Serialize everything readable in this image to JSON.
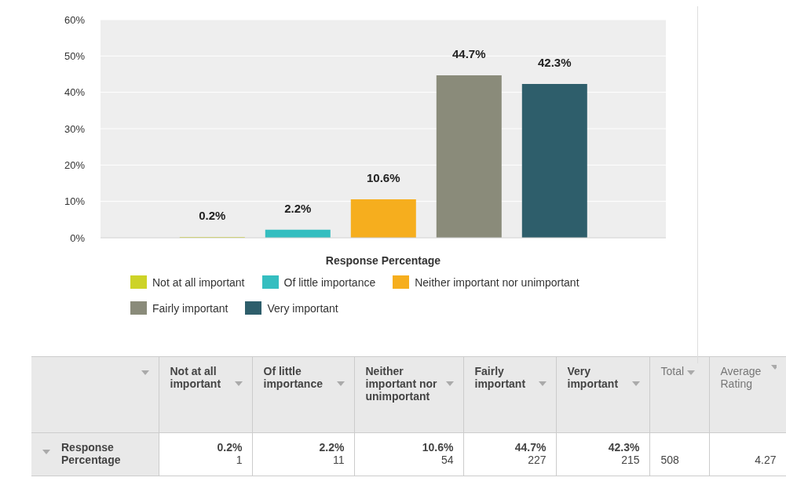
{
  "chart_data": {
    "type": "bar",
    "categories": [
      "Response Percentage"
    ],
    "series": [
      {
        "name": "Not at all important",
        "color": "#cdd327",
        "values": [
          0.2
        ],
        "value_labels": [
          "0.2%"
        ]
      },
      {
        "name": "Of little importance",
        "color": "#35bec0",
        "values": [
          2.2
        ],
        "value_labels": [
          "2.2%"
        ]
      },
      {
        "name": "Neither important nor unimportant",
        "color": "#f6ae1e",
        "values": [
          10.6
        ],
        "value_labels": [
          "10.6%"
        ]
      },
      {
        "name": "Fairly important",
        "color": "#8a8b7a",
        "values": [
          44.7
        ],
        "value_labels": [
          "44.7%"
        ]
      },
      {
        "name": "Very important",
        "color": "#2e5e6b",
        "values": [
          42.3
        ],
        "value_labels": [
          "42.3%"
        ]
      }
    ],
    "ylim": [
      0,
      60
    ],
    "yticks": [
      {
        "value": 0,
        "label": "0%"
      },
      {
        "value": 10,
        "label": "10%"
      },
      {
        "value": 20,
        "label": "20%"
      },
      {
        "value": 30,
        "label": "30%"
      },
      {
        "value": 40,
        "label": "40%"
      },
      {
        "value": 50,
        "label": "50%"
      },
      {
        "value": 60,
        "label": "60%"
      }
    ],
    "grid": "y",
    "legend": "bottom",
    "annotations": [
      "1",
      "11",
      "54",
      "227",
      "215",
      "Total",
      "508",
      "Average Rating",
      "4.27"
    ]
  }
}
